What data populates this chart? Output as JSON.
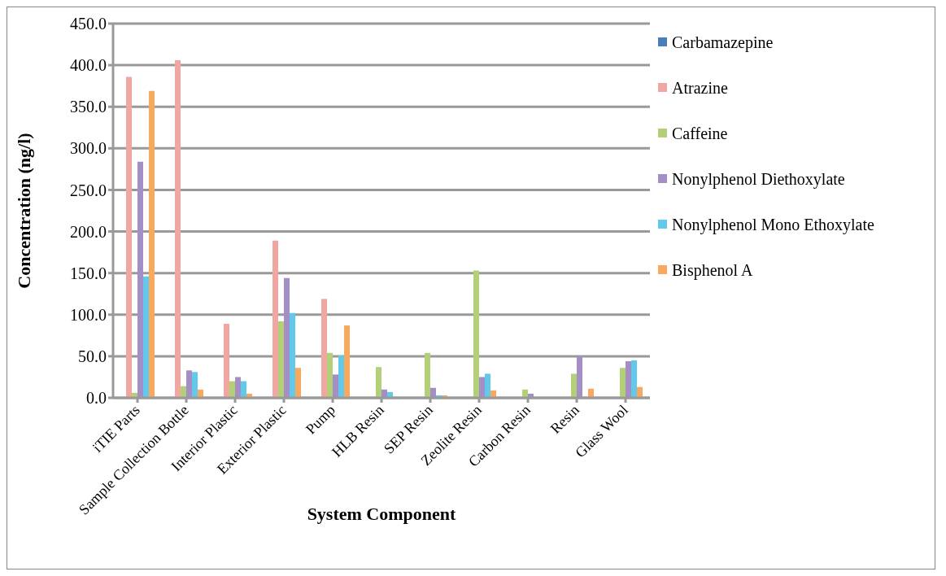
{
  "chart_data": {
    "type": "bar",
    "xlabel": "System Component",
    "ylabel": "Concentration (ng/l)",
    "categories": [
      "iTIE Parts",
      "Sample Collection Bottle",
      "Interior Plastic",
      "Exterior Plastic",
      "Pump",
      "HLB Resin",
      "SEP Resin",
      "Zeolite Resin",
      "Carbon Resin",
      "Resin",
      "Glass Wool"
    ],
    "series": [
      {
        "name": "Carbamazepine",
        "color": "#4a7ebb",
        "values": [
          0,
          0,
          0,
          0,
          0,
          0,
          0,
          0,
          0,
          0,
          0
        ]
      },
      {
        "name": "Atrazine",
        "color": "#f0a7a2",
        "values": [
          386,
          406,
          89,
          189,
          119,
          0,
          0,
          0,
          0,
          0,
          0
        ]
      },
      {
        "name": "Caffeine",
        "color": "#b3d078",
        "values": [
          6,
          14,
          20,
          92,
          54,
          37,
          54,
          153,
          10,
          29,
          36
        ]
      },
      {
        "name": "Nonylphenol Diethoxylate",
        "color": "#a38fc6",
        "values": [
          284,
          33,
          25,
          144,
          28,
          10,
          12,
          25,
          5,
          50,
          44
        ]
      },
      {
        "name": "Nonylphenol Mono Ethoxylate",
        "color": "#62c9ea",
        "values": [
          146,
          31,
          20,
          102,
          51,
          7,
          3,
          29,
          0,
          0,
          45
        ]
      },
      {
        "name": "Bisphenol A",
        "color": "#f8a95e",
        "values": [
          369,
          10,
          5,
          36,
          87,
          0,
          3,
          9,
          0,
          11,
          13
        ]
      }
    ],
    "ylim": [
      0,
      450
    ],
    "yticks": [
      {
        "value": 0,
        "label": "0.0"
      },
      {
        "value": 50,
        "label": "50.0"
      },
      {
        "value": 100,
        "label": "100.0"
      },
      {
        "value": 150,
        "label": "150.0"
      },
      {
        "value": 200,
        "label": "200.0"
      },
      {
        "value": 250,
        "label": "250.0"
      },
      {
        "value": 300,
        "label": "300.0"
      },
      {
        "value": 350,
        "label": "350.0"
      },
      {
        "value": 400,
        "label": "400.0"
      },
      {
        "value": 450,
        "label": "450.0"
      }
    ],
    "grid": "y",
    "legend": "right"
  }
}
